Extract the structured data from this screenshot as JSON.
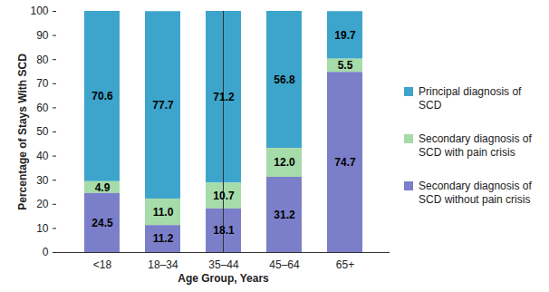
{
  "chart_data": {
    "type": "bar",
    "stacked": true,
    "data_labels": true,
    "grid": false,
    "legend": "right",
    "x_label": "Age Group, Years",
    "y_label": "Percentage of Stays With SCD",
    "categories": [
      "<18",
      "18–34",
      "35–44",
      "45–64",
      "65+"
    ],
    "ylim": [
      0,
      100
    ],
    "yticks": [
      0,
      10,
      20,
      30,
      40,
      50,
      60,
      70,
      80,
      90,
      100
    ],
    "series": [
      {
        "name": "Principal diagnosis of SCD",
        "color": "#3da5cc",
        "values": [
          70.6,
          77.7,
          71.2,
          56.8,
          19.7
        ],
        "value_labels": [
          "70.6",
          "77.7",
          "71.2",
          "56.8",
          "19.7"
        ]
      },
      {
        "name": "Secondary diagnosis of SCD with pain crisis",
        "color": "#a6dbaa",
        "values": [
          4.9,
          11.0,
          10.7,
          12.0,
          5.5
        ],
        "value_labels": [
          "4.9",
          "11.0",
          "10.7",
          "12.0",
          "5.5"
        ]
      },
      {
        "name": "Secondary diagnosis of SCD without pain crisis",
        "color": "#7b7fc9",
        "values": [
          24.5,
          11.2,
          18.1,
          31.2,
          74.7
        ],
        "value_labels": [
          "24.5",
          "11.2",
          "18.1",
          "31.2",
          "74.7"
        ]
      }
    ]
  }
}
